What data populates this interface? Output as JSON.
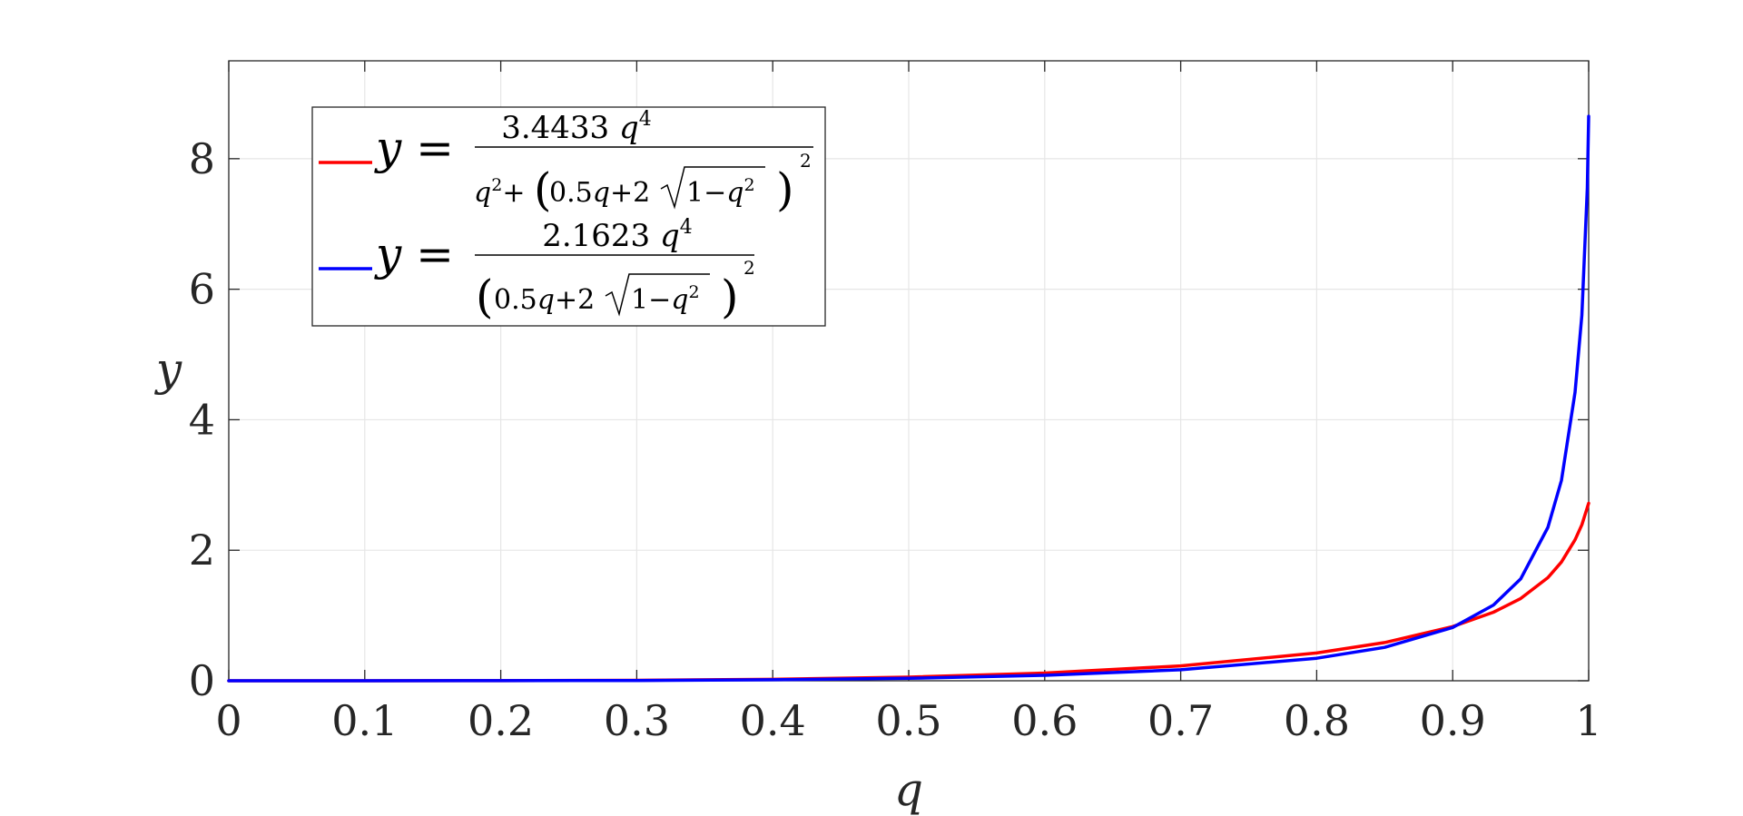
{
  "chart_data": {
    "type": "line",
    "xlabel": "q",
    "ylabel": "y",
    "xlim": [
      0,
      1
    ],
    "ylim": [
      0,
      9.5
    ],
    "xticks": [
      0,
      0.1,
      0.2,
      0.3,
      0.4,
      0.5,
      0.6,
      0.7,
      0.8,
      0.9,
      1
    ],
    "xtick_labels": [
      "0",
      "0.1",
      "0.2",
      "0.3",
      "0.4",
      "0.5",
      "0.6",
      "0.7",
      "0.8",
      "0.9",
      "1"
    ],
    "yticks": [
      0,
      2,
      4,
      6,
      8
    ],
    "ytick_labels": [
      "0",
      "2",
      "4",
      "6",
      "8"
    ],
    "grid": true,
    "legend_position": "top-left",
    "series": [
      {
        "name": "y = 3.4433 q^4 / (q^2 + (0.5q + 2√(1−q^2))^2)",
        "color": "#ff0000",
        "x": [
          0,
          0.1,
          0.2,
          0.3,
          0.4,
          0.5,
          0.6,
          0.7,
          0.8,
          0.85,
          0.9,
          0.93,
          0.95,
          0.97,
          0.98,
          0.99,
          0.995,
          1
        ],
        "y": [
          0,
          0.0001,
          0.0013,
          0.0069,
          0.0221,
          0.0554,
          0.118,
          0.228,
          0.426,
          0.585,
          0.83,
          1.05,
          1.26,
          1.58,
          1.82,
          2.16,
          2.39,
          2.72
        ]
      },
      {
        "name": "y = 2.1623 q^4 / (0.5q + 2√(1−q^2))^2",
        "color": "#0000ff",
        "x": [
          0,
          0.1,
          0.2,
          0.3,
          0.4,
          0.5,
          0.6,
          0.7,
          0.8,
          0.85,
          0.9,
          0.93,
          0.95,
          0.97,
          0.98,
          0.99,
          0.995,
          0.999,
          1
        ],
        "y": [
          0,
          0.0001,
          0.0009,
          0.0046,
          0.0148,
          0.0375,
          0.083,
          0.168,
          0.345,
          0.512,
          0.817,
          1.16,
          1.56,
          2.35,
          3.07,
          4.42,
          5.6,
          7.55,
          8.65
        ]
      }
    ]
  }
}
